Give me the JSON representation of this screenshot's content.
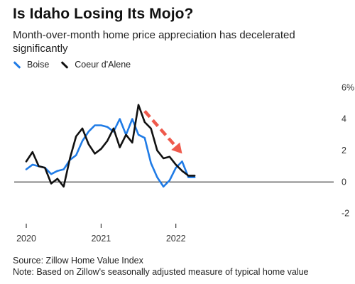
{
  "title": "Is Idaho Losing Its Mojo?",
  "subtitle": "Month-over-month home price appreciation has decelerated significantly",
  "legend": [
    {
      "label": "Boise",
      "color": "#1f7be6"
    },
    {
      "label": "Coeur d'Alene",
      "color": "#111111"
    }
  ],
  "source": "Source: Zillow Home Value Index",
  "note": "Note: Based on Zillow's seasonally adjusted measure of typical home value",
  "colors": {
    "boise": "#1f7be6",
    "coeur": "#111111",
    "arrow": "#ef5a4c",
    "axis": "#111111",
    "tick": "#333333"
  },
  "chart_data": {
    "type": "line",
    "x": [
      "2020-01",
      "2020-02",
      "2020-03",
      "2020-04",
      "2020-05",
      "2020-06",
      "2020-07",
      "2020-08",
      "2020-09",
      "2020-10",
      "2020-11",
      "2020-12",
      "2021-01",
      "2021-02",
      "2021-03",
      "2021-04",
      "2021-05",
      "2021-06",
      "2021-07",
      "2021-08",
      "2021-09",
      "2021-10",
      "2021-11",
      "2021-12",
      "2022-01",
      "2022-02",
      "2022-03",
      "2022-04"
    ],
    "series": [
      {
        "name": "Boise",
        "values": [
          0.8,
          1.1,
          1.0,
          0.9,
          0.5,
          0.7,
          0.8,
          1.4,
          1.7,
          2.6,
          3.2,
          3.6,
          3.6,
          3.5,
          3.2,
          4.0,
          3.0,
          4.0,
          3.0,
          2.8,
          1.2,
          0.3,
          -0.3,
          0.1,
          0.9,
          1.3,
          0.3,
          0.3
        ],
        "color": "#1f7be6"
      },
      {
        "name": "Coeur d'Alene",
        "values": [
          1.3,
          1.9,
          1.0,
          0.9,
          -0.1,
          0.2,
          -0.3,
          1.5,
          2.9,
          3.4,
          2.4,
          1.8,
          2.1,
          2.6,
          3.4,
          2.2,
          3.0,
          2.5,
          4.9,
          3.8,
          3.4,
          2.0,
          1.5,
          1.6,
          1.1,
          0.7,
          0.4,
          0.4
        ]
      }
    ],
    "xticks": [
      {
        "label": "2020",
        "date": "2020-01"
      },
      {
        "label": "2021",
        "date": "2021-01"
      },
      {
        "label": "2022",
        "date": "2022-01"
      }
    ],
    "yticks": [
      {
        "label": "6%",
        "value": 6
      },
      {
        "label": "4",
        "value": 4
      },
      {
        "label": "2",
        "value": 2
      },
      {
        "label": "0",
        "value": 0
      },
      {
        "label": "-2",
        "value": -2
      }
    ],
    "ylim": [
      -2.2,
      6.6
    ],
    "arrow": {
      "from": {
        "date": "2021-08",
        "value": 4.5
      },
      "to": {
        "date": "2022-02",
        "value": 1.8
      }
    },
    "xlabel": "",
    "ylabel": ""
  }
}
